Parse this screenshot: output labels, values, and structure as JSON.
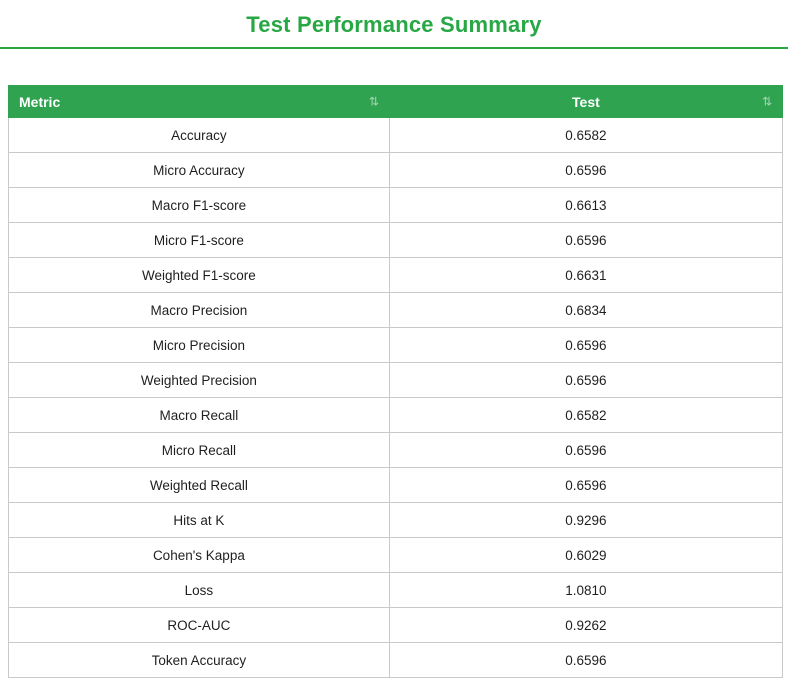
{
  "title": "Test Performance Summary",
  "theme": {
    "title_green": "#28a745",
    "header_green": "#2fa350",
    "border": "#c9c9c9",
    "text": "#1f1f1f"
  },
  "table": {
    "columns": [
      {
        "label": "Metric",
        "sort_icon": "⇅"
      },
      {
        "label": "Test",
        "sort_icon": "⇅"
      }
    ],
    "rows": [
      {
        "metric": "Accuracy",
        "test": "0.6582"
      },
      {
        "metric": "Micro Accuracy",
        "test": "0.6596"
      },
      {
        "metric": "Macro F1-score",
        "test": "0.6613"
      },
      {
        "metric": "Micro F1-score",
        "test": "0.6596"
      },
      {
        "metric": "Weighted F1-score",
        "test": "0.6631"
      },
      {
        "metric": "Macro Precision",
        "test": "0.6834"
      },
      {
        "metric": "Micro Precision",
        "test": "0.6596"
      },
      {
        "metric": "Weighted Precision",
        "test": "0.6596"
      },
      {
        "metric": "Macro Recall",
        "test": "0.6582"
      },
      {
        "metric": "Micro Recall",
        "test": "0.6596"
      },
      {
        "metric": "Weighted Recall",
        "test": "0.6596"
      },
      {
        "metric": "Hits at K",
        "test": "0.9296"
      },
      {
        "metric": "Cohen's Kappa",
        "test": "0.6029"
      },
      {
        "metric": "Loss",
        "test": "1.0810"
      },
      {
        "metric": "ROC-AUC",
        "test": "0.9262"
      },
      {
        "metric": "Token Accuracy",
        "test": "0.6596"
      }
    ]
  }
}
